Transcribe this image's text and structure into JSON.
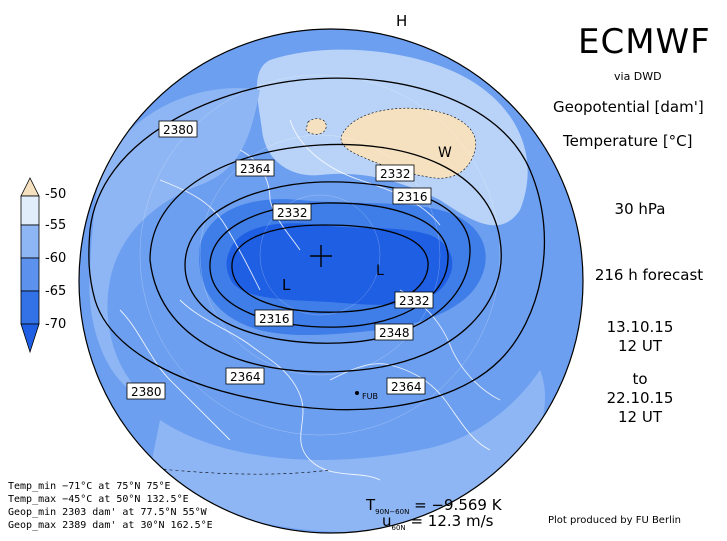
{
  "header": {
    "model": "ECMWF",
    "source": "via DWD",
    "param1_name": "Geopotential",
    "param1_unit": "[dam']",
    "param2_name": "Temperature",
    "param2_unit": "[°C]",
    "level": "30 hPa",
    "forecast": "216 h forecast",
    "init_date": "13.10.15",
    "init_time": "12 UT",
    "to_label": "to",
    "valid_date": "22.10.15",
    "valid_time": "12 UT"
  },
  "legend": {
    "labels": [
      "-50",
      "-55",
      "-60",
      "-65",
      "-70"
    ],
    "colors": [
      "#f5e1c0",
      "#cfe3fb",
      "#6d9ff0",
      "#3f7ee8",
      "#1f5fe3",
      "#1f5fe3"
    ]
  },
  "contours": {
    "values": [
      "2380",
      "2364",
      "2332",
      "2316",
      "2332",
      "2316",
      "2332",
      "2348",
      "2364",
      "2364",
      "2380"
    ],
    "centers": [
      "L",
      "H",
      "W",
      "L"
    ]
  },
  "stats": {
    "temp_min": "Temp_min −71°C at 75°N 75°E",
    "temp_max": "Temp_max −45°C at 50°N 132.5°E",
    "geop_min": "Geop_min 2303 dam' at 77.5°N 55°W",
    "geop_max": "Geop_max 2389 dam' at 30°N 162.5°E"
  },
  "indices": {
    "t_symbol": "T",
    "t_sub": "90N−60N",
    "t_value": "=  −9.569 K",
    "u_symbol": "u",
    "u_sub": "60N",
    "u_value": "=  12.3 m/s"
  },
  "map": {
    "fub_label": "FUB"
  },
  "credit": "Plot produced by FU Berlin"
}
